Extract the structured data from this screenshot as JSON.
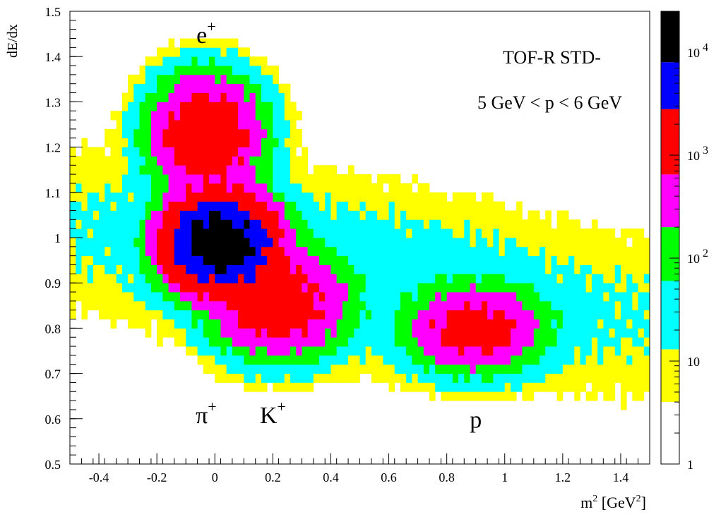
{
  "chart_data": {
    "type": "heatmap",
    "ylabel": "dE/dx",
    "xlabel": "m",
    "xlabel_sup": "2",
    "xlabel_unit_pre": " [GeV",
    "xlabel_unit_sup": "2",
    "xlabel_unit_post": "]",
    "xlim": [
      -0.5,
      1.5
    ],
    "ylim": [
      0.5,
      1.5
    ],
    "x_ticks": [
      {
        "value": -0.4,
        "label": "-0.4"
      },
      {
        "value": -0.2,
        "label": "-0.2"
      },
      {
        "value": 0,
        "label": "0"
      },
      {
        "value": 0.2,
        "label": "0.2"
      },
      {
        "value": 0.4,
        "label": "0.4"
      },
      {
        "value": 0.6,
        "label": "0.6"
      },
      {
        "value": 0.8,
        "label": "0.8"
      },
      {
        "value": 1.0,
        "label": "1"
      },
      {
        "value": 1.2,
        "label": "1.2"
      },
      {
        "value": 1.4,
        "label": "1.4"
      }
    ],
    "y_ticks": [
      {
        "value": 0.5,
        "label": "0.5"
      },
      {
        "value": 0.6,
        "label": "0.6"
      },
      {
        "value": 0.7,
        "label": "0.7"
      },
      {
        "value": 0.8,
        "label": "0.8"
      },
      {
        "value": 0.9,
        "label": "0.9"
      },
      {
        "value": 1.0,
        "label": "1"
      },
      {
        "value": 1.1,
        "label": "1.1"
      },
      {
        "value": 1.2,
        "label": "1.2"
      },
      {
        "value": 1.3,
        "label": "1.3"
      },
      {
        "value": 1.4,
        "label": "1.4"
      },
      {
        "value": 1.5,
        "label": "1.5"
      }
    ],
    "annotations": {
      "setting": "TOF-R  STD-",
      "momentum_range": "5 GeV < p < 6 GeV"
    },
    "particle_labels": [
      {
        "base": "e",
        "sup": "+",
        "x": -0.03,
        "y": 1.43
      },
      {
        "base": "π",
        "sup": "+",
        "x": -0.03,
        "y": 0.59
      },
      {
        "base": "K",
        "sup": "+",
        "x": 0.2,
        "y": 0.59
      },
      {
        "base": "p",
        "sup": "",
        "x": 0.9,
        "y": 0.58
      }
    ],
    "color_scale": {
      "scale": "log",
      "range": [
        1,
        25000
      ],
      "levels": [
        {
          "from": 1,
          "to": 4,
          "color": "#ffffff"
        },
        {
          "from": 4,
          "to": 13,
          "color": "#ffff00"
        },
        {
          "from": 13,
          "to": 60,
          "color": "#00ffff"
        },
        {
          "from": 60,
          "to": 200,
          "color": "#00ff00"
        },
        {
          "from": 200,
          "to": 650,
          "color": "#ff00ff"
        },
        {
          "from": 650,
          "to": 2800,
          "color": "#ff0000"
        },
        {
          "from": 2800,
          "to": 8000,
          "color": "#0000ff"
        },
        {
          "from": 8000,
          "to": 25000,
          "color": "#000000"
        }
      ],
      "tick_labels": [
        {
          "value": 1,
          "base": "1",
          "exp": ""
        },
        {
          "value": 10,
          "base": "10",
          "exp": ""
        },
        {
          "value": 100,
          "base": "10",
          "exp": "2"
        },
        {
          "value": 1000,
          "base": "10",
          "exp": "3"
        },
        {
          "value": 10000,
          "base": "10",
          "exp": "4"
        }
      ]
    },
    "bins": {
      "nx": 100,
      "ny": 50,
      "xmin": -0.5,
      "xmax": 1.5,
      "ymin": 0.5,
      "ymax": 1.5
    },
    "populations": [
      {
        "name": "e+",
        "amplitude": 2000,
        "x": -0.03,
        "y": 1.23,
        "sx": 0.09,
        "sy": 0.06
      },
      {
        "name": "pi+",
        "amplitude": 17000,
        "x": 0.02,
        "y": 0.99,
        "sx": 0.085,
        "sy": 0.048
      },
      {
        "name": "K+",
        "amplitude": 1500,
        "x": 0.22,
        "y": 0.855,
        "sx": 0.11,
        "sy": 0.055
      },
      {
        "name": "p",
        "amplitude": 1200,
        "x": 0.9,
        "y": 0.8,
        "sx": 0.11,
        "sy": 0.045
      }
    ]
  }
}
